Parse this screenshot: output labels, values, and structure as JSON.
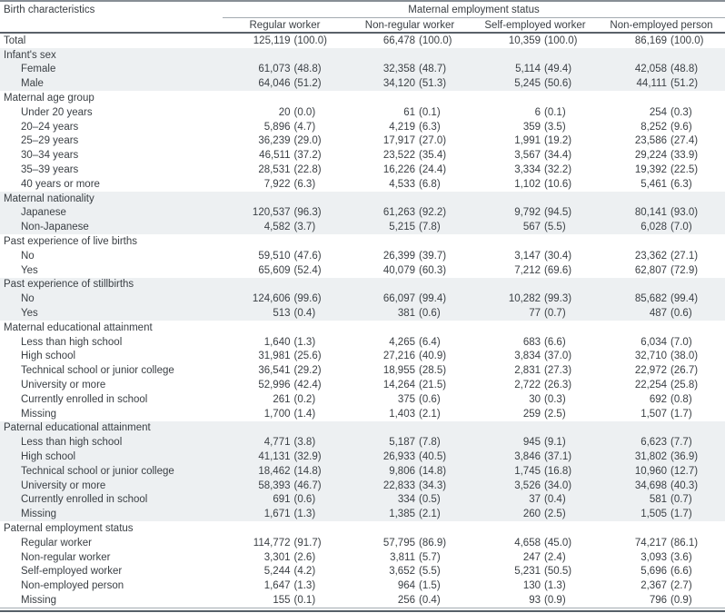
{
  "table": {
    "col1_header": "Birth characteristics",
    "group_header": "Maternal employment status",
    "columns": [
      "Regular worker",
      "Non-regular worker",
      "Self-employed worker",
      "Non-employed person"
    ],
    "colors": {
      "shaded_row_bg": "#edf0f2",
      "text": "#3a3f44",
      "rule_light": "#a3abb1",
      "rule_dark": "#5a6169",
      "rule_top": "#878e95"
    },
    "sections": [
      {
        "header": null,
        "shaded": false,
        "rows": [
          {
            "label": "Total",
            "indent": false,
            "values": [
              "125,119 (100.0)",
              "66,478 (100.0)",
              "10,359 (100.0)",
              "86,169 (100.0)"
            ]
          }
        ]
      },
      {
        "header": "Infant's sex",
        "shaded": true,
        "rows": [
          {
            "label": "Female",
            "indent": true,
            "values": [
              "61,073 (48.8)",
              "32,358 (48.7)",
              "5,114 (49.4)",
              "42,058 (48.8)"
            ]
          },
          {
            "label": "Male",
            "indent": true,
            "values": [
              "64,046 (51.2)",
              "34,120 (51.3)",
              "5,245 (50.6)",
              "44,111 (51.2)"
            ]
          }
        ]
      },
      {
        "header": "Maternal age group",
        "shaded": false,
        "rows": [
          {
            "label": "Under 20 years",
            "indent": true,
            "values": [
              "20 (0.0)",
              "61 (0.1)",
              "6 (0.1)",
              "254 (0.3)"
            ]
          },
          {
            "label": "20–24 years",
            "indent": true,
            "values": [
              "5,896 (4.7)",
              "4,219 (6.3)",
              "359 (3.5)",
              "8,252 (9.6)"
            ]
          },
          {
            "label": "25–29 years",
            "indent": true,
            "values": [
              "36,239 (29.0)",
              "17,917 (27.0)",
              "1,991 (19.2)",
              "23,586 (27.4)"
            ]
          },
          {
            "label": "30–34 years",
            "indent": true,
            "values": [
              "46,511 (37.2)",
              "23,522 (35.4)",
              "3,567 (34.4)",
              "29,224 (33.9)"
            ]
          },
          {
            "label": "35–39 years",
            "indent": true,
            "values": [
              "28,531 (22.8)",
              "16,226 (24.4)",
              "3,334 (32.2)",
              "19,392 (22.5)"
            ]
          },
          {
            "label": "40 years or more",
            "indent": true,
            "values": [
              "7,922 (6.3)",
              "4,533 (6.8)",
              "1,102 (10.6)",
              "5,461 (6.3)"
            ]
          }
        ]
      },
      {
        "header": "Maternal nationality",
        "shaded": true,
        "rows": [
          {
            "label": "Japanese",
            "indent": true,
            "values": [
              "120,537 (96.3)",
              "61,263 (92.2)",
              "9,792 (94.5)",
              "80,141 (93.0)"
            ]
          },
          {
            "label": "Non-Japanese",
            "indent": true,
            "values": [
              "4,582 (3.7)",
              "5,215 (7.8)",
              "567 (5.5)",
              "6,028 (7.0)"
            ]
          }
        ]
      },
      {
        "header": "Past experience of live births",
        "shaded": false,
        "rows": [
          {
            "label": "No",
            "indent": true,
            "values": [
              "59,510 (47.6)",
              "26,399 (39.7)",
              "3,147 (30.4)",
              "23,362 (27.1)"
            ]
          },
          {
            "label": "Yes",
            "indent": true,
            "values": [
              "65,609 (52.4)",
              "40,079 (60.3)",
              "7,212 (69.6)",
              "62,807 (72.9)"
            ]
          }
        ]
      },
      {
        "header": "Past experience of stillbirths",
        "shaded": true,
        "rows": [
          {
            "label": "No",
            "indent": true,
            "values": [
              "124,606 (99.6)",
              "66,097 (99.4)",
              "10,282 (99.3)",
              "85,682 (99.4)"
            ]
          },
          {
            "label": "Yes",
            "indent": true,
            "values": [
              "513 (0.4)",
              "381 (0.6)",
              "77 (0.7)",
              "487 (0.6)"
            ]
          }
        ]
      },
      {
        "header": "Maternal educational attainment",
        "shaded": false,
        "rows": [
          {
            "label": "Less than high school",
            "indent": true,
            "values": [
              "1,640 (1.3)",
              "4,265 (6.4)",
              "683 (6.6)",
              "6,034 (7.0)"
            ]
          },
          {
            "label": "High school",
            "indent": true,
            "values": [
              "31,981 (25.6)",
              "27,216 (40.9)",
              "3,834 (37.0)",
              "32,710 (38.0)"
            ]
          },
          {
            "label": "Technical school or junior college",
            "indent": true,
            "values": [
              "36,541 (29.2)",
              "18,955 (28.5)",
              "2,831 (27.3)",
              "22,972 (26.7)"
            ]
          },
          {
            "label": "University or more",
            "indent": true,
            "values": [
              "52,996 (42.4)",
              "14,264 (21.5)",
              "2,722 (26.3)",
              "22,254 (25.8)"
            ]
          },
          {
            "label": "Currently enrolled in school",
            "indent": true,
            "values": [
              "261 (0.2)",
              "375 (0.6)",
              "30 (0.3)",
              "692 (0.8)"
            ]
          },
          {
            "label": "Missing",
            "indent": true,
            "values": [
              "1,700 (1.4)",
              "1,403 (2.1)",
              "259 (2.5)",
              "1,507 (1.7)"
            ]
          }
        ]
      },
      {
        "header": "Paternal educational attainment",
        "shaded": true,
        "rows": [
          {
            "label": "Less than high school",
            "indent": true,
            "values": [
              "4,771 (3.8)",
              "5,187 (7.8)",
              "945 (9.1)",
              "6,623 (7.7)"
            ]
          },
          {
            "label": "High school",
            "indent": true,
            "values": [
              "41,131 (32.9)",
              "26,933 (40.5)",
              "3,846 (37.1)",
              "31,802 (36.9)"
            ]
          },
          {
            "label": "Technical school or junior college",
            "indent": true,
            "values": [
              "18,462 (14.8)",
              "9,806 (14.8)",
              "1,745 (16.8)",
              "10,960 (12.7)"
            ]
          },
          {
            "label": "University or more",
            "indent": true,
            "values": [
              "58,393 (46.7)",
              "22,833 (34.3)",
              "3,526 (34.0)",
              "34,698 (40.3)"
            ]
          },
          {
            "label": "Currently enrolled in school",
            "indent": true,
            "values": [
              "691 (0.6)",
              "334 (0.5)",
              "37 (0.4)",
              "581 (0.7)"
            ]
          },
          {
            "label": "Missing",
            "indent": true,
            "values": [
              "1,671 (1.3)",
              "1,385 (2.1)",
              "260 (2.5)",
              "1,505 (1.7)"
            ]
          }
        ]
      },
      {
        "header": "Paternal employment status",
        "shaded": false,
        "rows": [
          {
            "label": "Regular worker",
            "indent": true,
            "values": [
              "114,772 (91.7)",
              "57,795 (86.9)",
              "4,658 (45.0)",
              "74,217 (86.1)"
            ]
          },
          {
            "label": "Non-regular worker",
            "indent": true,
            "values": [
              "3,301 (2.6)",
              "3,811 (5.7)",
              "247 (2.4)",
              "3,093 (3.6)"
            ]
          },
          {
            "label": "Self-employed worker",
            "indent": true,
            "values": [
              "5,244 (4.2)",
              "3,652 (5.5)",
              "5,231 (50.5)",
              "5,696 (6.6)"
            ]
          },
          {
            "label": "Non-employed person",
            "indent": true,
            "values": [
              "1,647 (1.3)",
              "964 (1.5)",
              "130 (1.3)",
              "2,367 (2.7)"
            ]
          },
          {
            "label": "Missing",
            "indent": true,
            "values": [
              "155 (0.1)",
              "256 (0.4)",
              "93 (0.9)",
              "796 (0.9)"
            ]
          }
        ]
      }
    ]
  }
}
